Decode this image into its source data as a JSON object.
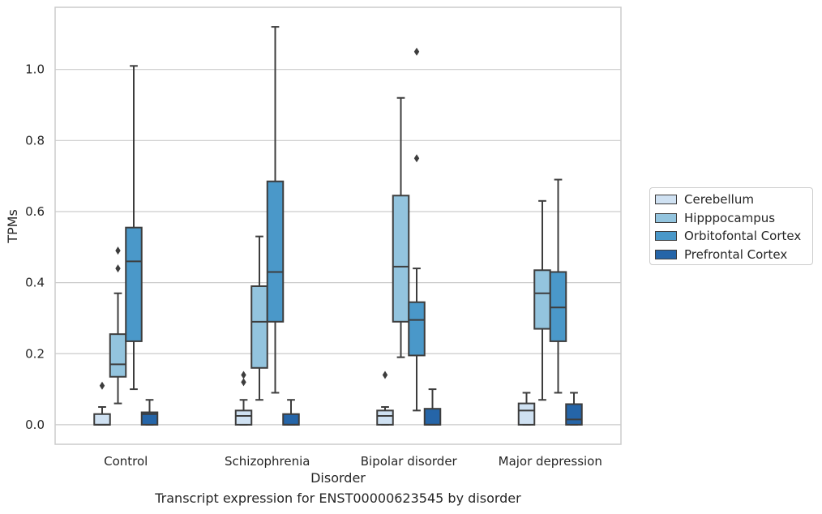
{
  "chart_data": {
    "type": "box",
    "caption": "Transcript expression for ENST00000623545 by disorder",
    "xlabel": "Disorder",
    "ylabel": "TPMs",
    "ylim": [
      -0.055,
      1.175
    ],
    "yticks": [
      "0.0",
      "0.2",
      "0.4",
      "0.6",
      "0.8",
      "1.0"
    ],
    "ytick_values": [
      0.0,
      0.2,
      0.4,
      0.6,
      0.8,
      1.0
    ],
    "grid": "horizontal",
    "legend_position": "right",
    "categories": [
      "Control",
      "Schizophrenia",
      "Bipolar disorder",
      "Major depression"
    ],
    "series": [
      {
        "name": "Cerebellum",
        "color": "#cfe1f2",
        "boxes": [
          {
            "whisker_low": 0.0,
            "q1": 0.0,
            "median": 0.0,
            "q3": 0.03,
            "whisker_high": 0.05,
            "outliers": [
              0.11
            ]
          },
          {
            "whisker_low": 0.0,
            "q1": 0.0,
            "median": 0.025,
            "q3": 0.04,
            "whisker_high": 0.07,
            "outliers": [
              0.12,
              0.14
            ]
          },
          {
            "whisker_low": 0.0,
            "q1": 0.0,
            "median": 0.025,
            "q3": 0.04,
            "whisker_high": 0.05,
            "outliers": [
              0.14
            ]
          },
          {
            "whisker_low": 0.0,
            "q1": 0.0,
            "median": 0.04,
            "q3": 0.06,
            "whisker_high": 0.09,
            "outliers": []
          }
        ]
      },
      {
        "name": "Hipppocampus",
        "color": "#93c4de",
        "boxes": [
          {
            "whisker_low": 0.06,
            "q1": 0.135,
            "median": 0.17,
            "q3": 0.255,
            "whisker_high": 0.37,
            "outliers": [
              0.44,
              0.49
            ]
          },
          {
            "whisker_low": 0.07,
            "q1": 0.16,
            "median": 0.29,
            "q3": 0.39,
            "whisker_high": 0.53,
            "outliers": []
          },
          {
            "whisker_low": 0.19,
            "q1": 0.29,
            "median": 0.445,
            "q3": 0.645,
            "whisker_high": 0.92,
            "outliers": []
          },
          {
            "whisker_low": 0.07,
            "q1": 0.27,
            "median": 0.37,
            "q3": 0.435,
            "whisker_high": 0.63,
            "outliers": []
          }
        ]
      },
      {
        "name": "Orbitofontal Cortex",
        "color": "#4a98c9",
        "boxes": [
          {
            "whisker_low": 0.1,
            "q1": 0.235,
            "median": 0.46,
            "q3": 0.555,
            "whisker_high": 1.01,
            "outliers": []
          },
          {
            "whisker_low": 0.09,
            "q1": 0.29,
            "median": 0.43,
            "q3": 0.685,
            "whisker_high": 1.12,
            "outliers": []
          },
          {
            "whisker_low": 0.04,
            "q1": 0.195,
            "median": 0.295,
            "q3": 0.345,
            "whisker_high": 0.44,
            "outliers": [
              0.75,
              1.05
            ]
          },
          {
            "whisker_low": 0.09,
            "q1": 0.235,
            "median": 0.33,
            "q3": 0.43,
            "whisker_high": 0.69,
            "outliers": []
          }
        ]
      },
      {
        "name": "Prefrontal Cortex",
        "color": "#2565a8",
        "boxes": [
          {
            "whisker_low": 0.0,
            "q1": 0.0,
            "median": 0.03,
            "q3": 0.035,
            "whisker_high": 0.07,
            "outliers": []
          },
          {
            "whisker_low": 0.0,
            "q1": 0.0,
            "median": 0.0,
            "q3": 0.03,
            "whisker_high": 0.07,
            "outliers": []
          },
          {
            "whisker_low": 0.0,
            "q1": 0.0,
            "median": 0.0,
            "q3": 0.045,
            "whisker_high": 0.1,
            "outliers": []
          },
          {
            "whisker_low": 0.0,
            "q1": 0.0,
            "median": 0.015,
            "q3": 0.058,
            "whisker_high": 0.09,
            "outliers": []
          }
        ]
      }
    ]
  }
}
